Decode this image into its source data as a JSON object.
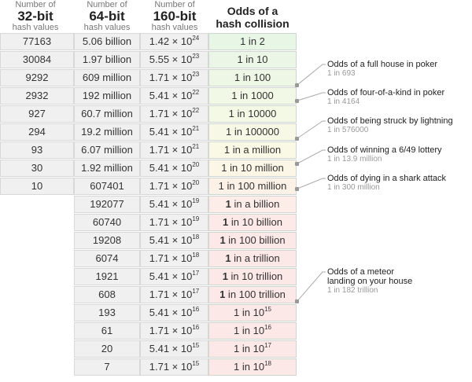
{
  "headers": {
    "c32": {
      "pre": "Number of",
      "big": "32-bit",
      "post": "hash values"
    },
    "c64": {
      "pre": "Number of",
      "big": "64-bit",
      "post": "hash values"
    },
    "c160": {
      "pre": "Number of",
      "big": "160-bit",
      "post": "hash values"
    },
    "odds": {
      "line1": "Odds of a",
      "line2": "hash collision"
    }
  },
  "rows": [
    {
      "b32": "77163",
      "b64": "5.06 billion",
      "m160": "1.42 × 10",
      "e160": "24",
      "odds_bold": "",
      "odds": "1 in 2",
      "odds_exp": ""
    },
    {
      "b32": "30084",
      "b64": "1.97 billion",
      "m160": "5.55 × 10",
      "e160": "23",
      "odds_bold": "",
      "odds": "1 in 10",
      "odds_exp": ""
    },
    {
      "b32": "9292",
      "b64": "609 million",
      "m160": "1.71 × 10",
      "e160": "23",
      "odds_bold": "",
      "odds": "1 in 100",
      "odds_exp": ""
    },
    {
      "b32": "2932",
      "b64": "192 million",
      "m160": "5.41 × 10",
      "e160": "22",
      "odds_bold": "",
      "odds": "1 in 1000",
      "odds_exp": ""
    },
    {
      "b32": "927",
      "b64": "60.7 million",
      "m160": "1.71 × 10",
      "e160": "22",
      "odds_bold": "",
      "odds": "1 in 10000",
      "odds_exp": ""
    },
    {
      "b32": "294",
      "b64": "19.2 million",
      "m160": "5.41 × 10",
      "e160": "21",
      "odds_bold": "",
      "odds": "1 in 100000",
      "odds_exp": ""
    },
    {
      "b32": "93",
      "b64": "6.07 million",
      "m160": "1.71 × 10",
      "e160": "21",
      "odds_bold": "",
      "odds": "1 in a million",
      "odds_exp": ""
    },
    {
      "b32": "30",
      "b64": "1.92 million",
      "m160": "5.41 × 10",
      "e160": "20",
      "odds_bold": "",
      "odds": "1 in 10 million",
      "odds_exp": ""
    },
    {
      "b32": "10",
      "b64": "607401",
      "m160": "1.71 × 10",
      "e160": "20",
      "odds_bold": "",
      "odds": "1 in 100 million",
      "odds_exp": ""
    },
    {
      "b32": "",
      "b64": "192077",
      "m160": "5.41 × 10",
      "e160": "19",
      "odds_bold": "1",
      "odds": " in a billion",
      "odds_exp": ""
    },
    {
      "b32": "",
      "b64": "60740",
      "m160": "1.71 × 10",
      "e160": "19",
      "odds_bold": "1",
      "odds": " in 10 billion",
      "odds_exp": ""
    },
    {
      "b32": "",
      "b64": "19208",
      "m160": "5.41 × 10",
      "e160": "18",
      "odds_bold": "1",
      "odds": " in 100 billion",
      "odds_exp": ""
    },
    {
      "b32": "",
      "b64": "6074",
      "m160": "1.71 × 10",
      "e160": "18",
      "odds_bold": "1",
      "odds": " in a trillion",
      "odds_exp": ""
    },
    {
      "b32": "",
      "b64": "1921",
      "m160": "5.41 × 10",
      "e160": "17",
      "odds_bold": "1",
      "odds": " in 10 trillion",
      "odds_exp": ""
    },
    {
      "b32": "",
      "b64": "608",
      "m160": "1.71 × 10",
      "e160": "17",
      "odds_bold": "1",
      "odds": " in 100 trillion",
      "odds_exp": ""
    },
    {
      "b32": "",
      "b64": "193",
      "m160": "5.41 × 10",
      "e160": "16",
      "odds_bold": "",
      "odds": "1 in 10",
      "odds_exp": "15"
    },
    {
      "b32": "",
      "b64": "61",
      "m160": "1.71 × 10",
      "e160": "16",
      "odds_bold": "",
      "odds": "1 in 10",
      "odds_exp": "16"
    },
    {
      "b32": "",
      "b64": "20",
      "m160": "5.41 × 10",
      "e160": "15",
      "odds_bold": "",
      "odds": "1 in 10",
      "odds_exp": "17"
    },
    {
      "b32": "",
      "b64": "7",
      "m160": "1.71 × 10",
      "e160": "15",
      "odds_bold": "",
      "odds": "1 in 10",
      "odds_exp": "18"
    }
  ],
  "odds_colors": [
    "#e8f6e6",
    "#ebf6e6",
    "#eef7e6",
    "#f1f8e6",
    "#f4f9e6",
    "#f7f9e6",
    "#faf9e6",
    "#fcf6e6",
    "#fcf1e6",
    "#fdede8",
    "#fdeae8",
    "#fde8e8",
    "#fde8e8",
    "#fde8e8",
    "#fde8e8",
    "#fde8e8",
    "#fde8e8",
    "#fde8e8",
    "#fde8e8"
  ],
  "annotations": [
    {
      "title": "Odds of a full house in poker",
      "sub": "1 in 693"
    },
    {
      "title": "Odds of four-of-a-kind in poker",
      "sub": "1 in 4164"
    },
    {
      "title": "Odds of being struck by lightning",
      "sub": "1 in 576000"
    },
    {
      "title": "Odds of winning a 6/49 lottery",
      "sub": "1 in 13.9 million"
    },
    {
      "title": "Odds of dying in a shark attack",
      "sub": "1 in 300 million"
    },
    {
      "title": "Odds of a meteor\nlanding on your house",
      "sub": "1 in 182 trillion"
    }
  ]
}
